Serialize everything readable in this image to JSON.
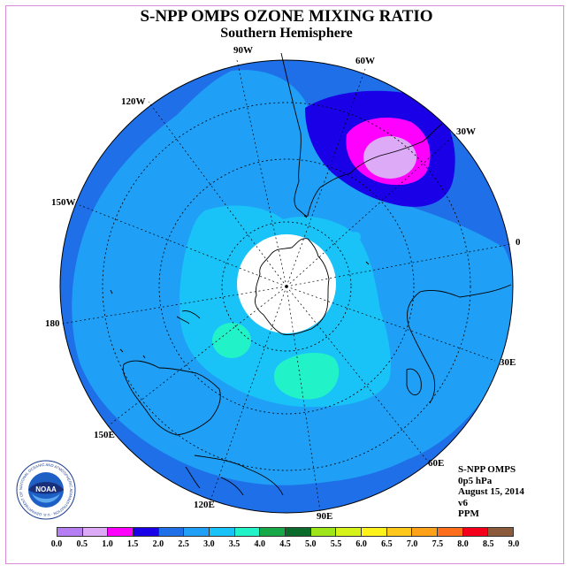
{
  "title": "S-NPP OMPS OZONE MIXING RATIO",
  "subtitle": "Southern Hemisphere",
  "longitude_labels": [
    "90W",
    "60W",
    "30W",
    "0",
    "30E",
    "60E",
    "90E",
    "120E",
    "150E",
    "180",
    "150W",
    "120W"
  ],
  "info": {
    "instrument": "S-NPP OMPS",
    "level": "0p5 hPa",
    "date": "August 15, 2014",
    "version": "v6",
    "units": "PPM"
  },
  "logo": {
    "text": "NOAA",
    "ring_text": "NATIONAL OCEANIC AND ATMOSPHERIC ADMINISTRATION · U.S. DEPARTMENT OF COMMERCE"
  },
  "colorbar": {
    "labels": [
      "0.0",
      "0.5",
      "1.0",
      "1.5",
      "2.0",
      "2.5",
      "3.0",
      "3.5",
      "4.0",
      "4.5",
      "5.0",
      "5.5",
      "6.0",
      "6.5",
      "7.0",
      "7.5",
      "8.0",
      "8.5",
      "9.0"
    ],
    "colors": [
      "#b57ef2",
      "#dcaaf7",
      "#ff00ff",
      "#1a00e6",
      "#1e6fe8",
      "#1f9ff5",
      "#19c3f7",
      "#22f2c8",
      "#17a848",
      "#0a6b2a",
      "#9ee61a",
      "#d7f41a",
      "#fff21a",
      "#ffc81a",
      "#ffa21a",
      "#ff6e1a",
      "#f5001a",
      "#8a5a3a"
    ]
  },
  "chart_data": {
    "type": "heatmap",
    "title": "S-NPP OMPS OZONE MIXING RATIO",
    "subtitle": "Southern Hemisphere",
    "projection": "polar stereographic, south pole centered",
    "units": "PPM",
    "range": [
      0.0,
      9.0
    ],
    "contour_interval": 0.5,
    "regions": [
      {
        "area": "background ocean / outer rim",
        "range": [
          2.0,
          2.5
        ]
      },
      {
        "area": "mid latitudes",
        "range": [
          2.5,
          3.0
        ]
      },
      {
        "area": "near south pole, ring around data gap",
        "range": [
          3.0,
          3.5
        ]
      },
      {
        "area": "south of Australia (~120E)",
        "range": [
          3.5,
          4.0
        ]
      },
      {
        "area": "near 170E",
        "range": [
          3.5,
          4.0
        ]
      },
      {
        "area": "South Atlantic off South America (~40W)",
        "range": [
          1.0,
          1.5
        ]
      },
      {
        "area": "center of South Atlantic low",
        "range": [
          0.5,
          1.0
        ]
      }
    ]
  }
}
